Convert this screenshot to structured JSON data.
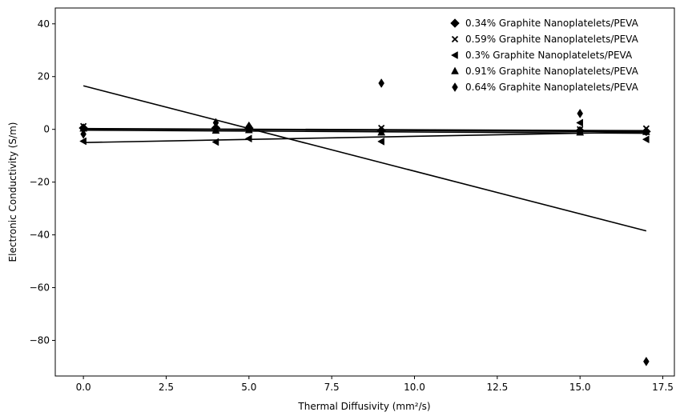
{
  "chart_data": {
    "type": "scatter",
    "title": "",
    "xlabel": "Thermal Diffusivity (mm²/s)",
    "ylabel": "Electronic Conductivity (S/m)",
    "xlim": [
      -0.85,
      17.85
    ],
    "ylim": [
      -93.5,
      46
    ],
    "xticks": [
      0.0,
      2.5,
      5.0,
      7.5,
      10.0,
      12.5,
      15.0,
      17.5
    ],
    "xtick_labels": [
      "0.0",
      "2.5",
      "5.0",
      "7.5",
      "10.0",
      "12.5",
      "15.0",
      "17.5"
    ],
    "yticks": [
      -80,
      -60,
      -40,
      -20,
      0,
      20,
      40
    ],
    "ytick_labels": [
      "−80",
      "−60",
      "−40",
      "−20",
      "0",
      "20",
      "40"
    ],
    "grid": false,
    "legend_position": "top-right",
    "color": "#000000",
    "series": [
      {
        "name": "0.34% Graphite Nanoplatelets/PEVA",
        "marker": "diamond",
        "points": [
          [
            0,
            0.5
          ],
          [
            4,
            0.5
          ],
          [
            5,
            0.5
          ],
          [
            9,
            -0.5
          ],
          [
            15,
            -0.5
          ],
          [
            17,
            -0.8
          ]
        ],
        "fit_line": [
          [
            0,
            0.2
          ],
          [
            17,
            -0.9
          ]
        ]
      },
      {
        "name": "0.59% Graphite Nanoplatelets/PEVA",
        "marker": "x",
        "points": [
          [
            0,
            1.2
          ],
          [
            4,
            0.0
          ],
          [
            5,
            0.3
          ],
          [
            9,
            0.5
          ],
          [
            15,
            0.0
          ],
          [
            17,
            0.3
          ]
        ],
        "fit_line": [
          [
            0,
            0.3
          ],
          [
            17,
            -0.5
          ]
        ]
      },
      {
        "name": "0.3% Graphite Nanoplatelets/PEVA",
        "marker": "triangle-left",
        "points": [
          [
            0,
            -4.5
          ],
          [
            4,
            -4.8
          ],
          [
            5,
            -3.5
          ],
          [
            9,
            -4.6
          ],
          [
            15,
            2.5
          ],
          [
            17,
            -3.8
          ]
        ],
        "fit_line": [
          [
            0,
            -5.0
          ],
          [
            17,
            -1.0
          ]
        ]
      },
      {
        "name": "0.91% Graphite Nanoplatelets/PEVA",
        "marker": "triangle-up",
        "points": [
          [
            0,
            0.3
          ],
          [
            4,
            -0.5
          ],
          [
            5,
            -0.3
          ],
          [
            9,
            -1.2
          ],
          [
            15,
            -1.2
          ],
          [
            17,
            -1.0
          ]
        ],
        "fit_line": [
          [
            0,
            -0.3
          ],
          [
            17,
            -1.5
          ]
        ]
      },
      {
        "name": "0.64% Graphite Nanoplatelets/PEVA",
        "marker": "thin-diamond",
        "points": [
          [
            0,
            -1.8
          ],
          [
            4,
            2.5
          ],
          [
            5,
            1.2
          ],
          [
            9,
            17.5
          ],
          [
            15,
            6.0
          ],
          [
            17,
            -88.0
          ]
        ],
        "fit_line": [
          [
            0,
            16.5
          ],
          [
            17,
            -38.5
          ]
        ]
      }
    ]
  }
}
